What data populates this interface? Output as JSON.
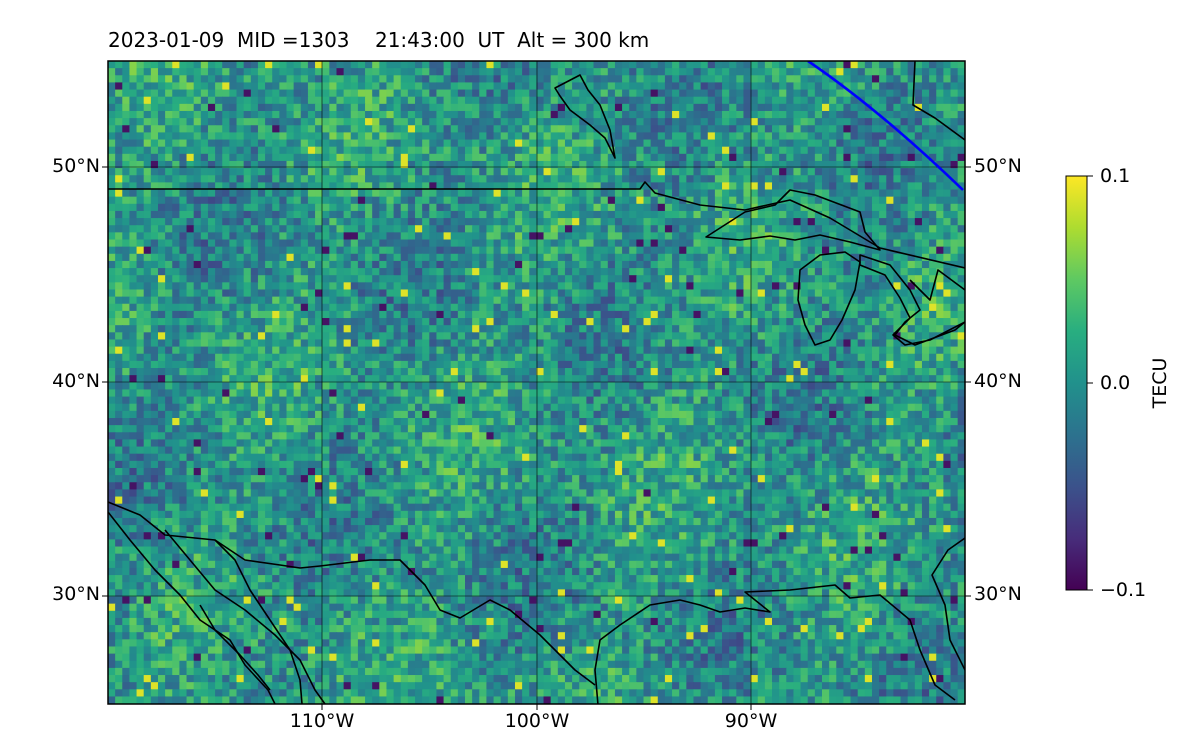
{
  "title": {
    "date": "2023-01-09",
    "mid": "MID =1303",
    "time": "21:43:00",
    "ut": "UT",
    "alt": "Alt = 300 km"
  },
  "map": {
    "lat_ticks": [
      "50°N",
      "40°N",
      "30°N"
    ],
    "lon_ticks": [
      "110°W",
      "100°W",
      "90°W"
    ],
    "extent_lon": [
      -120,
      -80
    ],
    "extent_lat": [
      25,
      55
    ],
    "coastline_color": "#000000",
    "terminator_color": "#0000ff",
    "gridlines": true
  },
  "colorbar": {
    "label": "TECU",
    "ticks": [
      "0.1",
      "0.0",
      "−0.1"
    ],
    "vmin": -0.1,
    "vmax": 0.1,
    "colormap": "viridis"
  }
}
